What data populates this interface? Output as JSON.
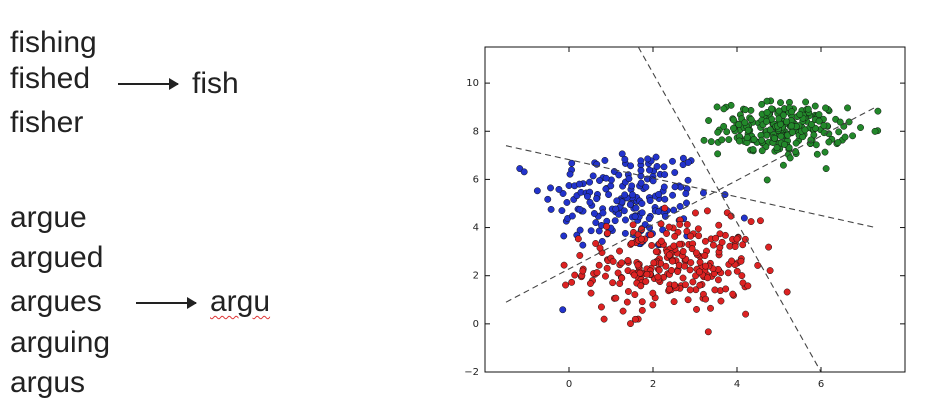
{
  "stemming": {
    "group1": {
      "words": [
        "fishing",
        "fished",
        "fisher"
      ],
      "stem": "fish"
    },
    "group2": {
      "words": [
        "argue",
        "argued",
        "argues",
        "arguing",
        "argus"
      ],
      "stem": "argu"
    }
  },
  "chart_data": {
    "type": "scatter",
    "title": "",
    "xlabel": "",
    "ylabel": "",
    "xlim": [
      -2,
      8
    ],
    "ylim": [
      -2,
      11.5
    ],
    "xticks": [
      "0",
      "2",
      "4",
      "6"
    ],
    "yticks": [
      "−2",
      "0",
      "2",
      "4",
      "6",
      "8",
      "10"
    ],
    "grid": false,
    "series": [
      {
        "color": "#2233cc",
        "center": [
          1.4,
          5.2
        ],
        "spread": [
          1.0,
          1.1
        ],
        "count": 190
      },
      {
        "color": "#dd2222",
        "center": [
          2.4,
          2.4
        ],
        "spread": [
          1.0,
          0.95
        ],
        "count": 260
      },
      {
        "color": "#22882a",
        "center": [
          5.1,
          8.1
        ],
        "spread": [
          0.75,
          0.55
        ],
        "count": 240
      }
    ],
    "boundaries": [
      {
        "from": [
          -1.5,
          7.4
        ],
        "to": [
          7.3,
          4.0
        ]
      },
      {
        "from": [
          -1.5,
          0.9
        ],
        "to": [
          7.3,
          9.0
        ]
      },
      {
        "from": [
          1.65,
          11.5
        ],
        "to": [
          6.0,
          -2.0
        ]
      }
    ]
  }
}
